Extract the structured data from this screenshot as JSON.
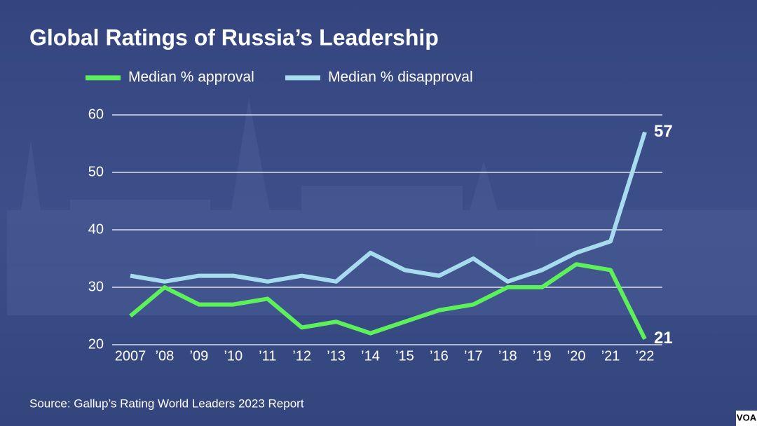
{
  "chart_data": {
    "type": "line",
    "title": "Global Ratings of Russia’s Leadership",
    "categories": [
      "2007",
      "’08",
      "’09",
      "’10",
      "’11",
      "’12",
      "’13",
      "’14",
      "’15",
      "’16",
      "’17",
      "’18",
      "’19",
      "’20",
      "’21",
      "’22"
    ],
    "series": [
      {
        "name": "Median % approval",
        "color": "#5cf05a",
        "values": [
          25,
          30,
          27,
          27,
          28,
          23,
          24,
          22,
          24,
          26,
          27,
          30,
          30,
          34,
          33,
          21
        ]
      },
      {
        "name": "Median % disapproval",
        "color": "#a6dcee",
        "values": [
          32,
          31,
          32,
          32,
          31,
          32,
          31,
          36,
          33,
          32,
          35,
          31,
          33,
          36,
          38,
          57
        ]
      }
    ],
    "ylim": [
      20,
      60
    ],
    "yticks": [
      20,
      30,
      40,
      50,
      60
    ],
    "grid": true,
    "source": "Source: Gallup’s Rating World Leaders 2023 Report",
    "logo": "VOA"
  }
}
